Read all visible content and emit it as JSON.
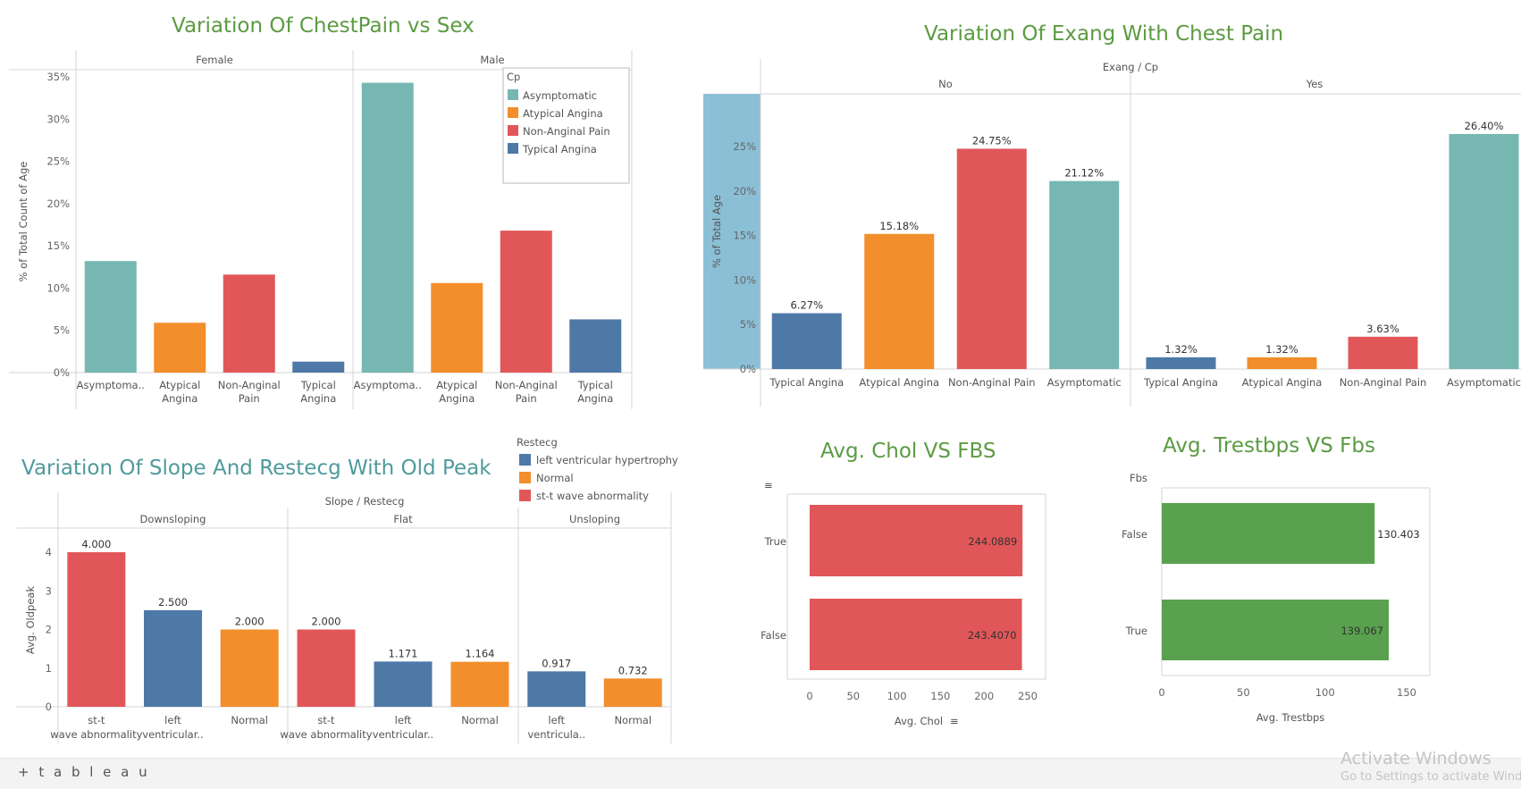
{
  "colors": {
    "asymptomatic": "#76b7b2",
    "atypical": "#f28e2b",
    "nonanginal": "#e15759",
    "typical": "#4e79a7",
    "green": "#59a14f",
    "band": "#8bbfd6"
  },
  "titles": {
    "c1": "Variation Of ChestPain vs Sex",
    "c2": "Variation Of Exang With Chest Pain",
    "c3": "Variation Of Slope And Restecg With Old Peak",
    "c4": "Avg. Chol VS FBS",
    "c5": "Avg. Trestbps VS Fbs"
  },
  "footer": {
    "brand": "+ t a b l e a u",
    "watermark_line1": "Activate Windows",
    "watermark_line2": "Go to Settings to activate Windows."
  },
  "chart_data": [
    {
      "type": "bar",
      "title": "Variation Of ChestPain vs Sex",
      "ylabel": "% of Total Count of Age",
      "ylim": [
        0,
        35
      ],
      "yticks": [
        "0%",
        "5%",
        "10%",
        "15%",
        "20%",
        "25%",
        "30%",
        "35%"
      ],
      "panels": [
        "Female",
        "Male"
      ],
      "categories": [
        "Asymptoma..",
        "Atypical Angina",
        "Non-Anginal Pain",
        "Typical Angina"
      ],
      "legend": {
        "title": "Cp",
        "position": "top-right",
        "entries": [
          "Asymptomatic",
          "Atypical Angina",
          "Non-Anginal Pain",
          "Typical Angina"
        ]
      },
      "series": [
        {
          "panel": "Female",
          "values": [
            13.2,
            5.9,
            11.6,
            1.3
          ]
        },
        {
          "panel": "Male",
          "values": [
            34.3,
            10.6,
            16.8,
            6.3
          ]
        }
      ]
    },
    {
      "type": "bar",
      "title": "Variation Of Exang With Chest Pain",
      "ylabel": "% of Total Age",
      "header": "Exang / Cp",
      "ylim": [
        0,
        28
      ],
      "yticks": [
        "0%",
        "5%",
        "10%",
        "15%",
        "20%",
        "25%"
      ],
      "panels": [
        "No",
        "Yes"
      ],
      "categories": [
        "Typical Angina",
        "Atypical Angina",
        "Non-Anginal Pain",
        "Asymptomatic"
      ],
      "series": [
        {
          "panel": "No",
          "values": [
            6.27,
            15.18,
            24.75,
            21.12
          ],
          "labels": [
            "6.27%",
            "15.18%",
            "24.75%",
            "21.12%"
          ]
        },
        {
          "panel": "Yes",
          "values": [
            1.32,
            1.32,
            3.63,
            26.4
          ],
          "labels": [
            "1.32%",
            "1.32%",
            "3.63%",
            "26.40%"
          ]
        }
      ]
    },
    {
      "type": "bar",
      "title": "Variation Of Slope And Restecg With Old Peak",
      "ylabel": "Avg. Oldpeak",
      "header": "Slope / Restecg",
      "ylim": [
        0,
        4.4
      ],
      "yticks": [
        "0",
        "1",
        "2",
        "3",
        "4"
      ],
      "legend": {
        "title": "Restecg",
        "position": "top-right",
        "entries": [
          "left ventricular hypertrophy",
          "Normal",
          "st-t wave abnormality"
        ]
      },
      "panels": [
        {
          "name": "Downsloping",
          "categories": [
            "st-t wave abnormality",
            "left ventricular..",
            "Normal"
          ],
          "values": [
            4.0,
            2.5,
            2.0
          ],
          "labels": [
            "4.000",
            "2.500",
            "2.000"
          ]
        },
        {
          "name": "Flat",
          "categories": [
            "st-t wave abnormality",
            "left ventricular..",
            "Normal"
          ],
          "values": [
            2.0,
            1.171,
            1.164
          ],
          "labels": [
            "2.000",
            "1.171",
            "1.164"
          ]
        },
        {
          "name": "Unsloping",
          "categories": [
            "left ventricula..",
            "Normal"
          ],
          "values": [
            0.917,
            0.732
          ],
          "labels": [
            "0.917",
            "0.732"
          ]
        }
      ]
    },
    {
      "type": "bar",
      "title": "Avg. Chol VS FBS",
      "xlabel": "Avg. Chol",
      "xlim": [
        0,
        250
      ],
      "xticks": [
        "0",
        "50",
        "100",
        "150",
        "200",
        "250"
      ],
      "categories": [
        "True",
        "False"
      ],
      "values": [
        244.0889,
        243.407
      ],
      "labels": [
        "244.0889",
        "243.4070"
      ]
    },
    {
      "type": "bar",
      "title": "Avg. Trestbps VS Fbs",
      "xlabel": "Avg. Trestbps",
      "row_header": "Fbs",
      "xlim": [
        0,
        150
      ],
      "xticks": [
        "0",
        "50",
        "100",
        "150"
      ],
      "categories": [
        "False",
        "True"
      ],
      "values": [
        130.403,
        139.067
      ],
      "labels": [
        "130.403",
        "139.067"
      ]
    }
  ]
}
